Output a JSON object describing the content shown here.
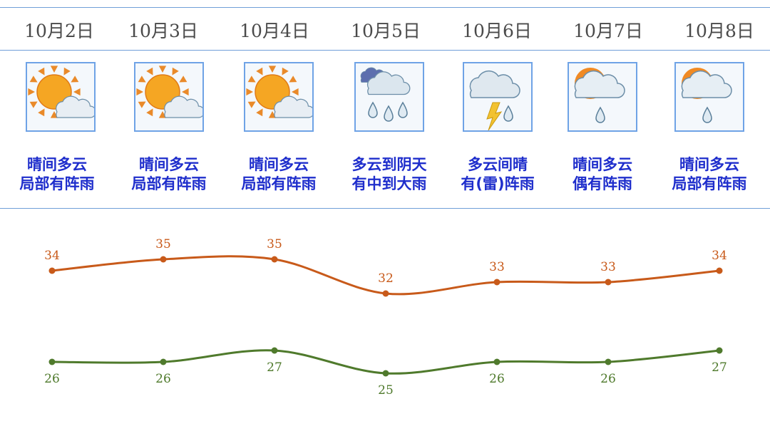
{
  "days": [
    {
      "date": "10月2日",
      "weather_line1": "晴间多云",
      "weather_line2": "局部有阵雨",
      "icon": "sun-cloud-icon"
    },
    {
      "date": "10月3日",
      "weather_line1": "晴间多云",
      "weather_line2": "局部有阵雨",
      "icon": "sun-cloud-icon"
    },
    {
      "date": "10月4日",
      "weather_line1": "晴间多云",
      "weather_line2": "局部有阵雨",
      "icon": "sun-cloud-icon"
    },
    {
      "date": "10月5日",
      "weather_line1": "多云到阴天",
      "weather_line2": "有中到大雨",
      "icon": "heavy-rain-icon"
    },
    {
      "date": "10月6日",
      "weather_line1": "多云间晴",
      "weather_line2": "有(雷)阵雨",
      "icon": "thunder-shower-icon"
    },
    {
      "date": "10月7日",
      "weather_line1": "晴间多云",
      "weather_line2": "偶有阵雨",
      "icon": "sun-cloud-shower-icon"
    },
    {
      "date": "10月8日",
      "weather_line1": "晴间多云",
      "weather_line2": "局部有阵雨",
      "icon": "sun-cloud-shower-icon"
    }
  ],
  "colors": {
    "high_line": "#c85a1a",
    "low_line": "#4f7a2c",
    "description_text": "#1f2ecc",
    "divider": "#6f9fd8",
    "icon_border": "#6fa3e6"
  },
  "chart_data": {
    "type": "line",
    "categories": [
      "10月2日",
      "10月3日",
      "10月4日",
      "10月5日",
      "10月6日",
      "10月7日",
      "10月8日"
    ],
    "series": [
      {
        "name": "",
        "values": [
          34,
          35,
          35,
          32,
          33,
          33,
          34
        ],
        "color": "#c85a1a"
      },
      {
        "name": "",
        "values": [
          26,
          26,
          27,
          25,
          26,
          26,
          27
        ],
        "color": "#4f7a2c"
      }
    ],
    "title": "",
    "xlabel": "",
    "ylabel": "",
    "grid": false,
    "axes_visible": false,
    "data_labels": true
  }
}
